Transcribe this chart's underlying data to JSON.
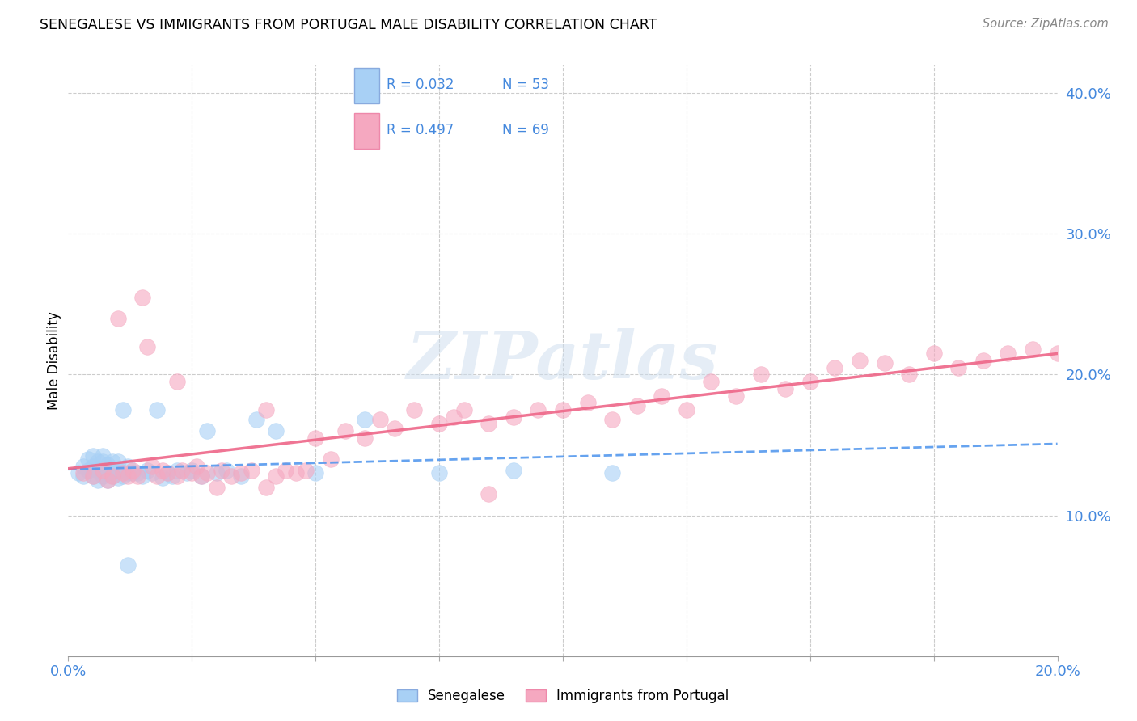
{
  "title": "SENEGALESE VS IMMIGRANTS FROM PORTUGAL MALE DISABILITY CORRELATION CHART",
  "source": "Source: ZipAtlas.com",
  "ylabel": "Male Disability",
  "xmin": 0.0,
  "xmax": 0.2,
  "ymin": 0.0,
  "ymax": 0.42,
  "color_blue": "#a8d0f5",
  "color_pink": "#f5a8c0",
  "trendline_blue": "#5599ee",
  "trendline_pink": "#ee6688",
  "watermark": "ZIPatlas",
  "blue_scatter_x": [
    0.002,
    0.003,
    0.003,
    0.004,
    0.004,
    0.005,
    0.005,
    0.005,
    0.006,
    0.006,
    0.006,
    0.007,
    0.007,
    0.007,
    0.007,
    0.008,
    0.008,
    0.008,
    0.009,
    0.009,
    0.009,
    0.01,
    0.01,
    0.01,
    0.011,
    0.011,
    0.012,
    0.012,
    0.013,
    0.014,
    0.015,
    0.016,
    0.017,
    0.018,
    0.019,
    0.02,
    0.021,
    0.022,
    0.024,
    0.025,
    0.027,
    0.028,
    0.03,
    0.032,
    0.035,
    0.038,
    0.042,
    0.05,
    0.06,
    0.075,
    0.09,
    0.11,
    0.012
  ],
  "blue_scatter_y": [
    0.13,
    0.128,
    0.135,
    0.132,
    0.14,
    0.128,
    0.135,
    0.142,
    0.125,
    0.132,
    0.138,
    0.128,
    0.133,
    0.138,
    0.142,
    0.125,
    0.13,
    0.136,
    0.128,
    0.133,
    0.138,
    0.127,
    0.132,
    0.138,
    0.128,
    0.175,
    0.13,
    0.135,
    0.13,
    0.13,
    0.128,
    0.132,
    0.13,
    0.175,
    0.127,
    0.13,
    0.128,
    0.132,
    0.13,
    0.132,
    0.128,
    0.16,
    0.13,
    0.132,
    0.128,
    0.168,
    0.16,
    0.13,
    0.168,
    0.13,
    0.132,
    0.13,
    0.065
  ],
  "pink_scatter_x": [
    0.003,
    0.005,
    0.007,
    0.008,
    0.009,
    0.01,
    0.011,
    0.012,
    0.013,
    0.014,
    0.015,
    0.016,
    0.017,
    0.018,
    0.019,
    0.02,
    0.022,
    0.023,
    0.025,
    0.026,
    0.027,
    0.028,
    0.03,
    0.031,
    0.033,
    0.035,
    0.037,
    0.04,
    0.042,
    0.044,
    0.046,
    0.048,
    0.05,
    0.053,
    0.056,
    0.06,
    0.063,
    0.066,
    0.07,
    0.075,
    0.078,
    0.08,
    0.085,
    0.09,
    0.095,
    0.1,
    0.105,
    0.11,
    0.115,
    0.12,
    0.125,
    0.13,
    0.135,
    0.14,
    0.145,
    0.15,
    0.155,
    0.16,
    0.165,
    0.17,
    0.175,
    0.18,
    0.185,
    0.19,
    0.195,
    0.2,
    0.022,
    0.04,
    0.085
  ],
  "pink_scatter_y": [
    0.13,
    0.128,
    0.132,
    0.125,
    0.128,
    0.24,
    0.13,
    0.128,
    0.132,
    0.128,
    0.255,
    0.22,
    0.135,
    0.128,
    0.132,
    0.13,
    0.128,
    0.132,
    0.13,
    0.135,
    0.128,
    0.13,
    0.12,
    0.132,
    0.128,
    0.13,
    0.132,
    0.175,
    0.128,
    0.132,
    0.13,
    0.132,
    0.155,
    0.14,
    0.16,
    0.155,
    0.168,
    0.162,
    0.175,
    0.165,
    0.17,
    0.175,
    0.165,
    0.17,
    0.175,
    0.175,
    0.18,
    0.168,
    0.178,
    0.185,
    0.175,
    0.195,
    0.185,
    0.2,
    0.19,
    0.195,
    0.205,
    0.21,
    0.208,
    0.2,
    0.215,
    0.205,
    0.21,
    0.215,
    0.218,
    0.215,
    0.195,
    0.12,
    0.115
  ]
}
